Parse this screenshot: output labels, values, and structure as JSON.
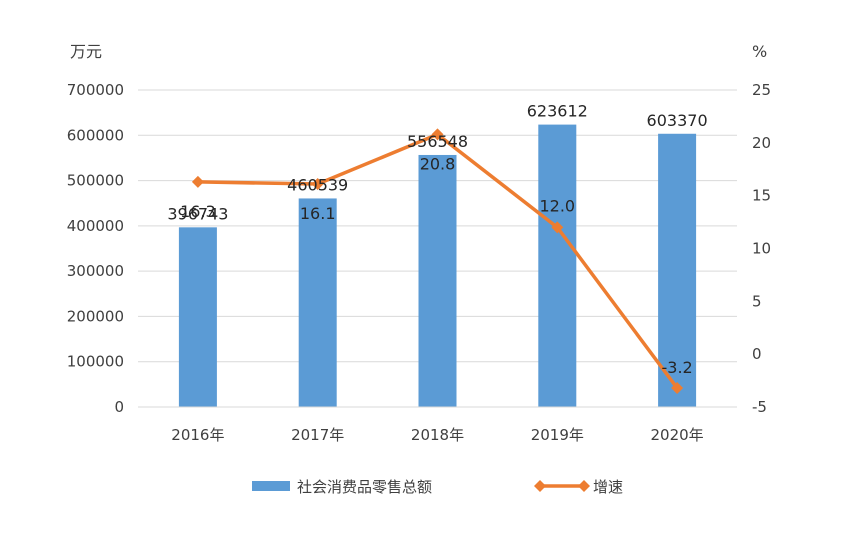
{
  "chart_data": {
    "type": "bar",
    "categories": [
      "2016年",
      "2017年",
      "2018年",
      "2019年",
      "2020年"
    ],
    "series": [
      {
        "name": "社会消费品零售总额",
        "type": "bar",
        "axis": "left",
        "color": "#5B9BD5",
        "values": [
          396743,
          460539,
          556548,
          623612,
          603370
        ],
        "labels": [
          "396743",
          "460539",
          "556548",
          "623612",
          "603370"
        ]
      },
      {
        "name": "增速",
        "type": "line",
        "axis": "right",
        "color": "#ED7D31",
        "marker": "diamond",
        "values": [
          16.3,
          16.1,
          20.8,
          12.0,
          -3.2
        ],
        "labels": [
          "16.3",
          "16.1",
          "20.8",
          "12.0",
          "-3.2"
        ]
      }
    ],
    "y_left": {
      "unit": "万元",
      "range": [
        0,
        700000
      ],
      "ticks": [
        0,
        100000,
        200000,
        300000,
        400000,
        500000,
        600000,
        700000
      ],
      "tick_labels": [
        "0",
        "100000",
        "200000",
        "300000",
        "400000",
        "500000",
        "600000",
        "700000"
      ]
    },
    "y_right": {
      "unit": "%",
      "range": [
        -5,
        25
      ],
      "ticks": [
        -5,
        0,
        5,
        10,
        15,
        20,
        25
      ],
      "tick_labels": [
        "-5",
        "0",
        "5",
        "10",
        "15",
        "20",
        "25"
      ]
    },
    "grid": true,
    "legend": "bottom"
  }
}
